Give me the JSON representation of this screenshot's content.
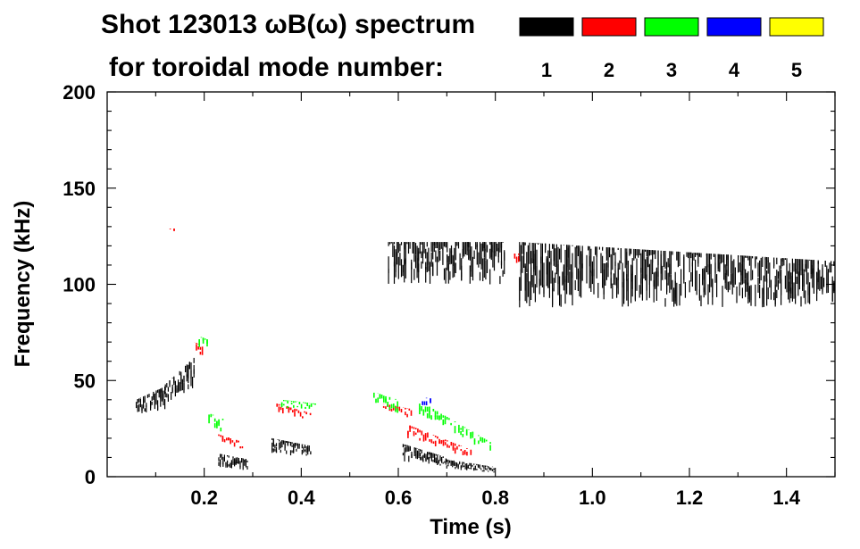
{
  "chart_data": {
    "type": "scatter",
    "title": "Shot 123013 ωB(ω) spectrum",
    "subtitle": "for toroidal mode number:",
    "xlabel": "Time (s)",
    "ylabel": "Frequency (kHz)",
    "xlim": [
      0.0,
      1.5
    ],
    "ylim": [
      0,
      200
    ],
    "x_ticks": [
      "0.2",
      "0.4",
      "0.6",
      "0.8",
      "1.0",
      "1.2",
      "1.4"
    ],
    "x_tick_values": [
      0.2,
      0.4,
      0.6,
      0.8,
      1.0,
      1.2,
      1.4
    ],
    "y_ticks": [
      "0",
      "50",
      "100",
      "150",
      "200"
    ],
    "y_tick_values": [
      0,
      50,
      100,
      150,
      200
    ],
    "grid": false,
    "legend_position": "top-right",
    "legend": [
      {
        "label": "1",
        "color": "#000000"
      },
      {
        "label": "2",
        "color": "#ff0000"
      },
      {
        "label": "3",
        "color": "#00ff00"
      },
      {
        "label": "4",
        "color": "#0000ff"
      },
      {
        "label": "5",
        "color": "#ffff00"
      }
    ],
    "series": [
      {
        "mode": 1,
        "color": "#000000",
        "regions": [
          {
            "t": [
              0.06,
              0.12
            ],
            "f": [
              32,
              40
            ],
            "f_end": [
              35,
              47
            ]
          },
          {
            "t": [
              0.12,
              0.18
            ],
            "f": [
              38,
              48
            ],
            "f_end": [
              45,
              62
            ]
          },
          {
            "t": [
              0.23,
              0.29
            ],
            "f": [
              5,
              12
            ],
            "f_end": [
              3,
              9
            ]
          },
          {
            "t": [
              0.34,
              0.42
            ],
            "f": [
              12,
              20
            ],
            "f_end": [
              10,
              16
            ]
          },
          {
            "t": [
              0.61,
              0.7
            ],
            "f": [
              8,
              17
            ],
            "f_end": [
              5,
              10
            ]
          },
          {
            "t": [
              0.7,
              0.8
            ],
            "f": [
              4,
              9
            ],
            "f_end": [
              2,
              5
            ]
          },
          {
            "t": [
              0.85,
              1.5
            ],
            "f": [
              88,
              122
            ],
            "f_end": [
              88,
              112
            ]
          },
          {
            "t": [
              0.58,
              0.82
            ],
            "f": [
              100,
              122
            ],
            "f_end": [
              100,
              122
            ]
          }
        ]
      },
      {
        "mode": 2,
        "color": "#ff0000",
        "regions": [
          {
            "t": [
              0.13,
              0.14
            ],
            "f": [
              124,
              129
            ],
            "f_end": [
              124,
              129
            ]
          },
          {
            "t": [
              0.18,
              0.2
            ],
            "f": [
              62,
              70
            ],
            "f_end": [
              60,
              68
            ]
          },
          {
            "t": [
              0.23,
              0.28
            ],
            "f": [
              18,
              22
            ],
            "f_end": [
              14,
              18
            ]
          },
          {
            "t": [
              0.35,
              0.42
            ],
            "f": [
              33,
              38
            ],
            "f_end": [
              29,
              33
            ]
          },
          {
            "t": [
              0.57,
              0.63
            ],
            "f": [
              33,
              38
            ],
            "f_end": [
              30,
              35
            ]
          },
          {
            "t": [
              0.62,
              0.75
            ],
            "f": [
              20,
              27
            ],
            "f_end": [
              9,
              14
            ]
          },
          {
            "t": [
              0.84,
              0.85
            ],
            "f": [
              108,
              116
            ],
            "f_end": [
              108,
              116
            ]
          }
        ]
      },
      {
        "mode": 3,
        "color": "#00ff00",
        "regions": [
          {
            "t": [
              0.19,
              0.21
            ],
            "f": [
              66,
              73
            ],
            "f_end": [
              64,
              71
            ]
          },
          {
            "t": [
              0.21,
              0.24
            ],
            "f": [
              25,
              33
            ],
            "f_end": [
              23,
              30
            ]
          },
          {
            "t": [
              0.36,
              0.43
            ],
            "f": [
              36,
              40
            ],
            "f_end": [
              34,
              38
            ]
          },
          {
            "t": [
              0.55,
              0.6
            ],
            "f": [
              38,
              44
            ],
            "f_end": [
              33,
              40
            ]
          },
          {
            "t": [
              0.64,
              0.79
            ],
            "f": [
              33,
              40
            ],
            "f_end": [
              12,
              18
            ]
          }
        ]
      },
      {
        "mode": 4,
        "color": "#0000ff",
        "regions": [
          {
            "t": [
              0.65,
              0.67
            ],
            "f": [
              37,
              41
            ],
            "f_end": [
              37,
              41
            ]
          }
        ]
      }
    ]
  }
}
